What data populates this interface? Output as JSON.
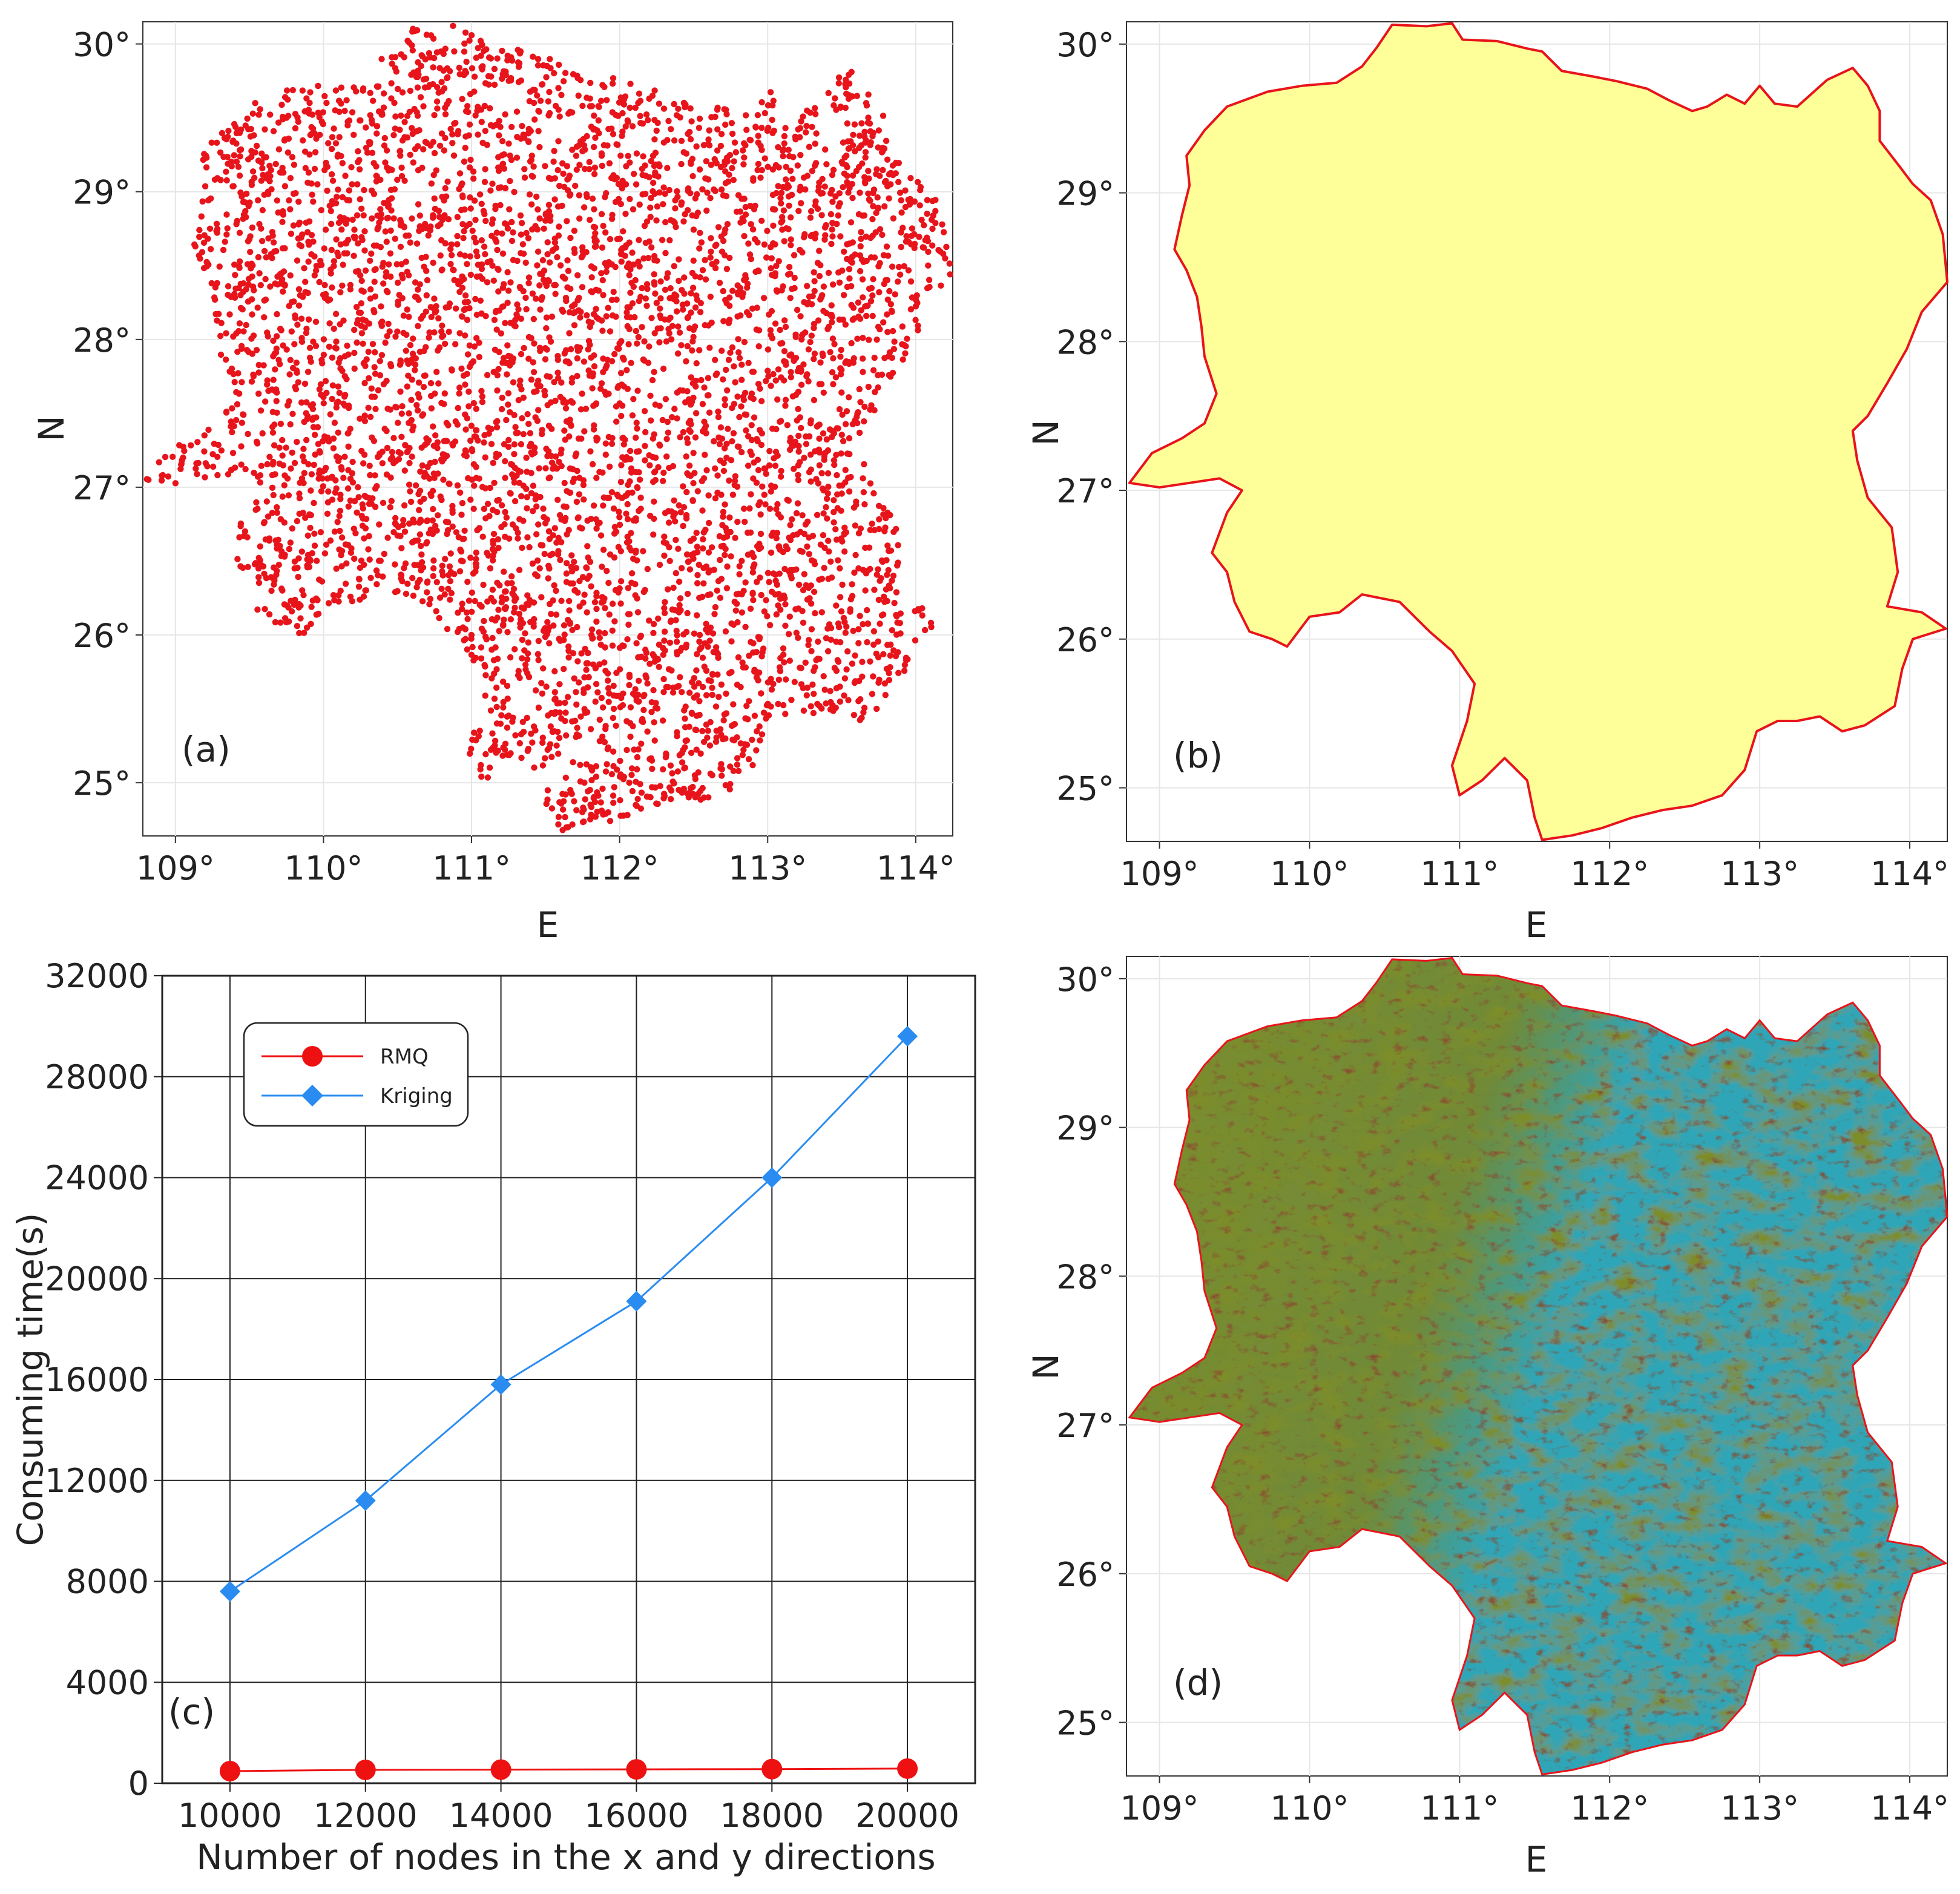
{
  "colors": {
    "points": "#e8141b",
    "boundary": "#e8141b",
    "fill": "#ffff99",
    "rmq": "#ee1111",
    "kriging": "#2a8cf0",
    "terrain_low": "#2fa6b8",
    "terrain_mid": "#7d8d2c",
    "terrain_high": "#8a4a30"
  },
  "map_axes": {
    "x_ticks": [
      "109°",
      "110°",
      "111°",
      "112°",
      "113°",
      "114°"
    ],
    "y_ticks": [
      "25°",
      "26°",
      "27°",
      "28°",
      "29°",
      "30°"
    ],
    "x_label": "E",
    "y_label": "N",
    "xlim": [
      108.78,
      114.25
    ],
    "ylim": [
      24.64,
      30.15
    ]
  },
  "panels": {
    "a": {
      "label": "(a)"
    },
    "b": {
      "label": "(b)"
    },
    "c": {
      "label": "(c)"
    },
    "d": {
      "label": "(d)"
    }
  },
  "chart_data": [
    {
      "type": "line",
      "x": [
        10000,
        12000,
        14000,
        16000,
        18000,
        20000
      ],
      "xlabel": "Number of nodes in the x and y directions",
      "ylabel": "Consuming time(s)",
      "xlim": [
        9000,
        21000
      ],
      "ylim": [
        0,
        32000
      ],
      "x_ticks": [
        "10000",
        "12000",
        "14000",
        "16000",
        "18000",
        "20000"
      ],
      "y_ticks": [
        "0",
        "4000",
        "8000",
        "12000",
        "16000",
        "20000",
        "24000",
        "28000",
        "32000"
      ],
      "grid": true,
      "legend": "top-left",
      "series": [
        {
          "name": "RMQ",
          "marker": "circle",
          "values": [
            480,
            530,
            540,
            550,
            560,
            580
          ]
        },
        {
          "name": "Kriging",
          "marker": "diamond",
          "values": [
            7600,
            11200,
            15800,
            19100,
            24000,
            29600
          ]
        }
      ]
    }
  ]
}
